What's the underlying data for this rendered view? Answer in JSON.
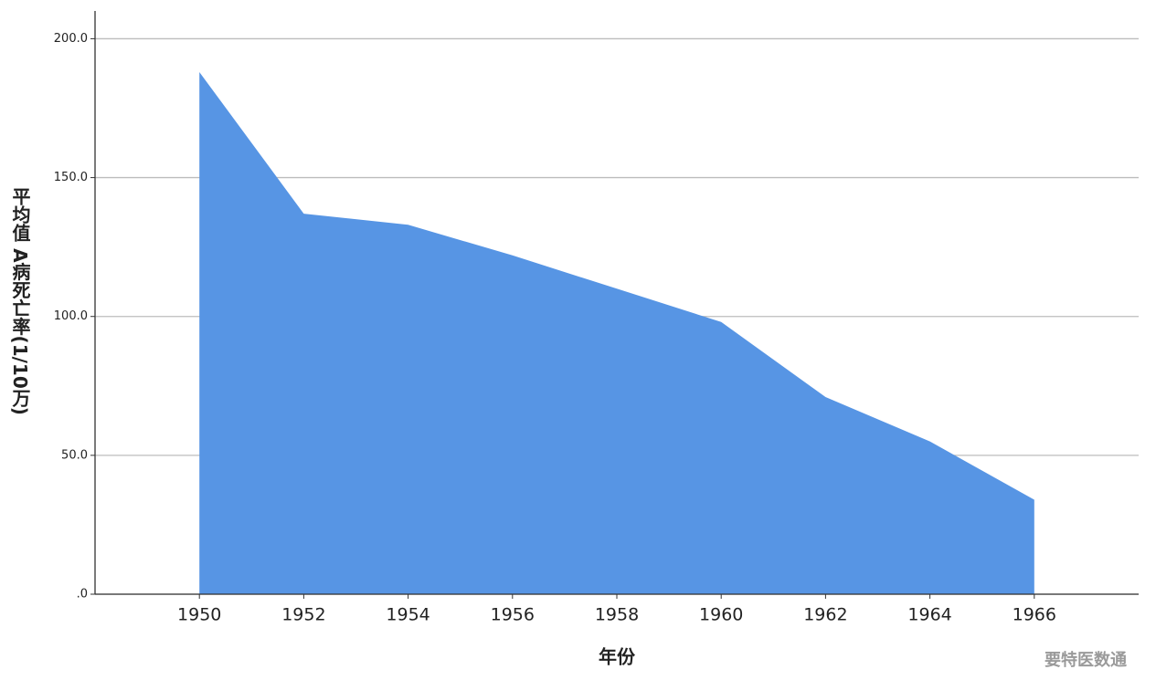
{
  "chart_data": {
    "type": "area",
    "x": [
      1950,
      1952,
      1954,
      1956,
      1958,
      1960,
      1962,
      1964,
      1966
    ],
    "values": [
      188,
      137,
      133,
      122,
      110,
      98,
      71,
      55,
      34
    ],
    "color": "#5795e4",
    "xlim": [
      1948,
      1968
    ],
    "xticks": [
      1950,
      1952,
      1954,
      1956,
      1958,
      1960,
      1962,
      1964,
      1966
    ],
    "ylim": [
      0,
      210
    ],
    "yticks": [
      {
        "value": 0,
        "label": ".0"
      },
      {
        "value": 50,
        "label": "50.0"
      },
      {
        "value": 100,
        "label": "100.0"
      },
      {
        "value": 150,
        "label": "150.0"
      },
      {
        "value": 200,
        "label": "200.0"
      }
    ],
    "grid": true,
    "x_label": "年份",
    "y_label": "平均值 A病死亡率(1/10万)",
    "watermark": "要特医数通"
  }
}
